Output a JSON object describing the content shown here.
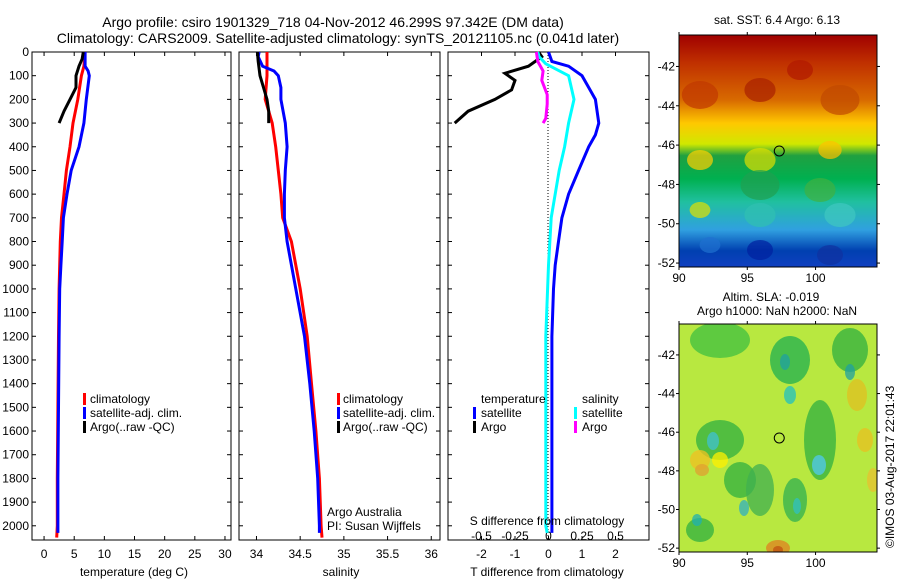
{
  "header": {
    "title_line1": "Argo profile: csiro 1901329_718 04-Nov-2012 46.299S 97.342E (DM data)",
    "title_line2": "Climatology: CARS2009. Satellite-adjusted climatology: synTS_20121105.nc (0.041d later)"
  },
  "colors": {
    "climatology": "#ff0000",
    "satellite": "#0000ff",
    "argo": "#000000",
    "sal_satellite": "#00ffff",
    "sal_argo": "#ff00ff"
  },
  "chart_data": [
    {
      "id": "temperature",
      "type": "line",
      "xlabel": "temperature (deg C)",
      "ylabel": "",
      "xlim": [
        -2,
        31
      ],
      "ylim": [
        2060,
        0
      ],
      "xticks": [
        0,
        5,
        10,
        15,
        20,
        25,
        30
      ],
      "yticks": [
        0,
        100,
        200,
        300,
        400,
        500,
        600,
        700,
        800,
        900,
        1000,
        1100,
        1200,
        1300,
        1400,
        1500,
        1600,
        1700,
        1800,
        1900,
        2000
      ],
      "legend": {
        "placement": "lower-right",
        "entries": [
          "climatology",
          "satellite-adj. clim.",
          "Argo(..raw -QC)"
        ]
      },
      "series": [
        {
          "name": "climatology",
          "color": "#ff0000",
          "depth": [
            0,
            60,
            100,
            200,
            300,
            400,
            500,
            600,
            700,
            800,
            900,
            1000,
            1200,
            1500,
            1800,
            2000,
            2050
          ],
          "values": [
            6.8,
            6.6,
            6.2,
            5.6,
            4.8,
            4.3,
            3.7,
            3.3,
            2.9,
            2.7,
            2.6,
            2.5,
            2.4,
            2.3,
            2.2,
            2.2,
            2.1
          ]
        },
        {
          "name": "satellite-adj. clim.",
          "color": "#0000ff",
          "depth": [
            0,
            60,
            80,
            100,
            200,
            300,
            400,
            500,
            600,
            700,
            800,
            900,
            1000,
            1200,
            1500,
            1800,
            2000,
            2030
          ],
          "values": [
            6.8,
            6.8,
            7.3,
            7.5,
            7.0,
            6.6,
            5.8,
            4.5,
            3.8,
            3.2,
            3.0,
            2.8,
            2.6,
            2.5,
            2.4,
            2.3,
            2.3,
            2.3
          ]
        },
        {
          "name": "Argo(..raw -QC)",
          "color": "#000000",
          "depth": [
            0,
            30,
            60,
            100,
            150,
            200,
            250,
            300
          ],
          "values": [
            6.5,
            6.3,
            5.8,
            5.3,
            5.3,
            4.3,
            3.3,
            2.5
          ]
        }
      ]
    },
    {
      "id": "salinity",
      "type": "line",
      "xlabel": "salinity",
      "xlim": [
        33.8,
        36.1
      ],
      "ylim": [
        2060,
        0
      ],
      "xticks": [
        34,
        34.5,
        35,
        35.5,
        36
      ],
      "legend": {
        "placement": "lower-right",
        "entries": [
          "climatology",
          "satellite-adj. clim.",
          "Argo(..raw -QC)"
        ]
      },
      "annotation": [
        "Argo Australia",
        "PI: Susan Wijffels"
      ],
      "series": [
        {
          "name": "climatology",
          "color": "#ff0000",
          "depth": [
            0,
            100,
            200,
            250,
            300,
            400,
            500,
            600,
            700,
            800,
            900,
            1000,
            1200,
            1400,
            1600,
            1800,
            2000,
            2050
          ],
          "values": [
            34.12,
            34.12,
            34.1,
            34.14,
            34.18,
            34.22,
            34.25,
            34.28,
            34.3,
            34.4,
            34.45,
            34.5,
            34.58,
            34.63,
            34.68,
            34.72,
            34.74,
            34.75
          ]
        },
        {
          "name": "satellite-adj. clim.",
          "color": "#0000ff",
          "depth": [
            0,
            20,
            60,
            80,
            100,
            150,
            200,
            300,
            400,
            500,
            600,
            700,
            800,
            1000,
            1200,
            1400,
            1600,
            1800,
            2000,
            2030
          ],
          "values": [
            34.03,
            34.02,
            34.07,
            34.2,
            34.25,
            34.28,
            34.28,
            34.33,
            34.35,
            34.33,
            34.32,
            34.32,
            34.35,
            34.45,
            34.55,
            34.61,
            34.66,
            34.7,
            34.72,
            34.72
          ]
        },
        {
          "name": "Argo(..raw -QC)",
          "color": "#000000",
          "depth": [
            0,
            40,
            100,
            150,
            200,
            250,
            300
          ],
          "values": [
            34.01,
            34.02,
            34.04,
            34.08,
            34.12,
            34.14,
            34.14
          ]
        }
      ]
    },
    {
      "id": "difference",
      "type": "line",
      "xlabel": "T difference from climatology",
      "xlabel_top": "S difference from climatology",
      "xlim": [
        -3,
        3
      ],
      "s_xlim": [
        -0.75,
        0.75
      ],
      "ylim": [
        2060,
        0
      ],
      "xticks": [
        -2,
        -1,
        0,
        1,
        2
      ],
      "s_xticks": [
        -0.5,
        -0.25,
        0,
        0.25,
        0.5
      ],
      "legend": {
        "placement": "lower-center",
        "groups": [
          {
            "title": "temperature",
            "entries": [
              "satellite",
              "Argo"
            ]
          },
          {
            "title": "salinity",
            "entries": [
              "satellite",
              "Argo"
            ]
          }
        ]
      },
      "series": [
        {
          "name": "temperature satellite",
          "axis": "T",
          "color": "#0000ff",
          "depth": [
            0,
            40,
            60,
            100,
            150,
            200,
            300,
            350,
            400,
            500,
            600,
            700,
            800,
            900,
            1000,
            1200,
            1500,
            1800,
            2000,
            2030
          ],
          "values": [
            0.0,
            0.1,
            0.6,
            1.0,
            1.2,
            1.4,
            1.5,
            1.4,
            1.2,
            0.9,
            0.6,
            0.4,
            0.3,
            0.2,
            0.15,
            0.1,
            0.1,
            0.1,
            0.1,
            0.1
          ]
        },
        {
          "name": "temperature Argo",
          "axis": "T",
          "color": "#000000",
          "depth": [
            0,
            20,
            40,
            60,
            90,
            120,
            160,
            200,
            250,
            300
          ],
          "values": [
            -0.3,
            -0.2,
            -0.4,
            -0.6,
            -1.3,
            -1.0,
            -1.1,
            -1.6,
            -2.4,
            -2.8
          ]
        },
        {
          "name": "salinity satellite",
          "axis": "S",
          "color": "#00ffff",
          "depth": [
            0,
            20,
            50,
            100,
            200,
            300,
            400,
            500,
            700,
            900,
            1200,
            1500,
            1800,
            2000,
            2030
          ],
          "values": [
            -0.08,
            -0.07,
            -0.02,
            0.15,
            0.19,
            0.15,
            0.12,
            0.08,
            0.02,
            0.0,
            -0.02,
            -0.02,
            -0.02,
            -0.02,
            -0.01
          ]
        },
        {
          "name": "salinity Argo",
          "axis": "S",
          "color": "#ff00ff",
          "depth": [
            0,
            40,
            80,
            120,
            180,
            220,
            280,
            300
          ],
          "values": [
            -0.09,
            -0.08,
            -0.04,
            -0.05,
            -0.01,
            -0.01,
            -0.02,
            -0.04
          ]
        }
      ]
    },
    {
      "id": "sst-map",
      "type": "heatmap",
      "title": "sat. SST: 6.4 Argo: 6.13",
      "xlim": [
        90,
        104.5
      ],
      "ylim": [
        -52.2,
        -40.4
      ],
      "xticks": [
        90,
        95,
        100
      ],
      "yticks": [
        -42,
        -44,
        -46,
        -48,
        -50,
        -52
      ],
      "marker": {
        "lon": 97.342,
        "lat": -46.299
      },
      "description": "SST field: warm (red) in north, cooling southward to blue in south"
    },
    {
      "id": "sla-map",
      "type": "heatmap",
      "title": "Altim. SLA: -0.019",
      "subtitle": "Argo h1000: NaN h2000: NaN",
      "xlim": [
        90,
        104.5
      ],
      "ylim": [
        -52.2,
        -40.4
      ],
      "xticks": [
        90,
        95,
        100
      ],
      "yticks": [
        -42,
        -44,
        -46,
        -48,
        -50,
        -52
      ],
      "marker": {
        "lon": 97.342,
        "lat": -46.299
      },
      "description": "Sea level anomaly field, mostly green/yellow with blobs"
    }
  ],
  "legend_text": {
    "climatology": "climatology",
    "satellite_adj": "satellite-adj. clim.",
    "argo_raw": "Argo(..raw -QC)",
    "diff_temperature": "temperature",
    "diff_salinity": "salinity",
    "satellite": "satellite",
    "argo": "Argo"
  },
  "credit": "©IMOS 03-Aug-2017 22:01:43"
}
